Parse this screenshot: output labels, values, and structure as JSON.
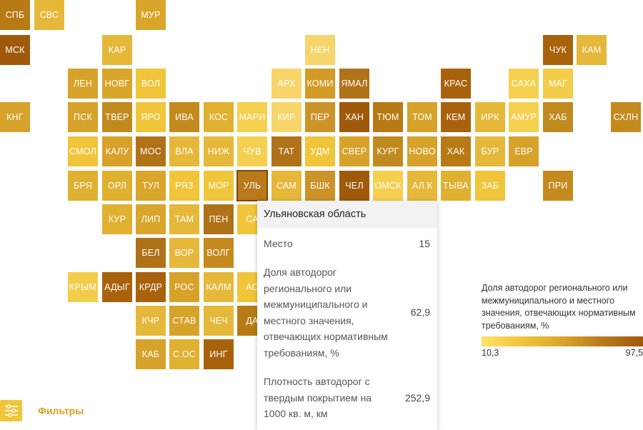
{
  "chart_data": {
    "type": "tile-map",
    "regions": [
      {
        "label": "СПБ",
        "color": "#b87a14"
      },
      {
        "label": "СВС",
        "color": "#e5b83a"
      },
      {
        "label": "МУР",
        "color": "#d9a52a"
      },
      {
        "label": "МСК",
        "color": "#9e5a0a"
      },
      {
        "label": "КАР",
        "color": "#e5b83a"
      },
      {
        "label": "НЕН",
        "color": "#f7d56a"
      },
      {
        "label": "ЧУК",
        "color": "#a8620c"
      },
      {
        "label": "КАМ",
        "color": "#e5b83a"
      },
      {
        "label": "ЛЕН",
        "color": "#d6a22a"
      },
      {
        "label": "НОВГ",
        "color": "#d9a52a"
      },
      {
        "label": "ВОЛ",
        "color": "#f0c53a"
      },
      {
        "label": "АРХ",
        "color": "#f7d56a"
      },
      {
        "label": "КОМИ",
        "color": "#d39a26"
      },
      {
        "label": "ЯМАЛ",
        "color": "#b07218"
      },
      {
        "label": "КРАС",
        "color": "#a8620c"
      },
      {
        "label": "САХА",
        "color": "#f5d04f"
      },
      {
        "label": "МАГ",
        "color": "#f3cc4a"
      },
      {
        "label": "КНГ",
        "color": "#d6a22a"
      },
      {
        "label": "ПСК",
        "color": "#d6a22a"
      },
      {
        "label": "ТВЕР",
        "color": "#c08a1e"
      },
      {
        "label": "ЯРО",
        "color": "#f0c53a"
      },
      {
        "label": "ИВА",
        "color": "#c48a1e"
      },
      {
        "label": "КОС",
        "color": "#e0b030"
      },
      {
        "label": "МАРИ",
        "color": "#f5d04f"
      },
      {
        "label": "КИР",
        "color": "#f7d56a"
      },
      {
        "label": "ПЕР",
        "color": "#cb9328"
      },
      {
        "label": "ХАН",
        "color": "#9e5a0a"
      },
      {
        "label": "ТЮМ",
        "color": "#b87a14"
      },
      {
        "label": "ТОМ",
        "color": "#d6a22a"
      },
      {
        "label": "КЕМ",
        "color": "#a8620c"
      },
      {
        "label": "ИРК",
        "color": "#e6b83a"
      },
      {
        "label": "АМУР",
        "color": "#f5d04f"
      },
      {
        "label": "ХАБ",
        "color": "#c08a1e"
      },
      {
        "label": "СХЛН",
        "color": "#c48a1e"
      },
      {
        "label": "СМОЛ",
        "color": "#f0c53a"
      },
      {
        "label": "КАЛУ",
        "color": "#d6a22a"
      },
      {
        "label": "МОС",
        "color": "#b07218"
      },
      {
        "label": "ВЛА",
        "color": "#e5b83a"
      },
      {
        "label": "НИЖ",
        "color": "#e5b83a"
      },
      {
        "label": "ЧУВ",
        "color": "#f5d04f"
      },
      {
        "label": "ТАТ",
        "color": "#b07218"
      },
      {
        "label": "УДМ",
        "color": "#f0c53a"
      },
      {
        "label": "СВЕР",
        "color": "#d6a22a"
      },
      {
        "label": "КУРГ",
        "color": "#c08a1e"
      },
      {
        "label": "НОВО",
        "color": "#d6a22a"
      },
      {
        "label": "ХАК",
        "color": "#b87a14"
      },
      {
        "label": "БУР",
        "color": "#e5b83a"
      },
      {
        "label": "ЕВР",
        "color": "#d6a22a"
      },
      {
        "label": "БРЯ",
        "color": "#e0b030"
      },
      {
        "label": "ОРЛ",
        "color": "#e0b030"
      },
      {
        "label": "ТУЛ",
        "color": "#d9a52a"
      },
      {
        "label": "РЯЗ",
        "color": "#f0c53a"
      },
      {
        "label": "МОР",
        "color": "#f0c53a"
      },
      {
        "label": "УЛЬ",
        "color": "#b8791a"
      },
      {
        "label": "САМ",
        "color": "#e5b83a"
      },
      {
        "label": "БШК",
        "color": "#cb9328"
      },
      {
        "label": "ЧЕЛ",
        "color": "#9e5a0a"
      },
      {
        "label": "ОМСК",
        "color": "#f5d04f"
      },
      {
        "label": "АЛ.К",
        "color": "#e5b83a"
      },
      {
        "label": "ТЫВА",
        "color": "#e0b030"
      },
      {
        "label": "ЗАБ",
        "color": "#f0c53a"
      },
      {
        "label": "ПРИ",
        "color": "#c48a1e"
      },
      {
        "label": "КУР",
        "color": "#e0b030"
      },
      {
        "label": "ЛИП",
        "color": "#d9a52a"
      },
      {
        "label": "ТАМ",
        "color": "#e5b83a"
      },
      {
        "label": "ПЕН",
        "color": "#b07218"
      },
      {
        "label": "СА",
        "color": "#f0c53a"
      },
      {
        "label": "БЕЛ",
        "color": "#b07218"
      },
      {
        "label": "ВОР",
        "color": "#e5b83a"
      },
      {
        "label": "ВОЛГ",
        "color": "#c48a1e"
      },
      {
        "label": "КРЫМ",
        "color": "#f3cc4a"
      },
      {
        "label": "АДЫГ",
        "color": "#a8620c"
      },
      {
        "label": "КРДР",
        "color": "#a8620c"
      },
      {
        "label": "РОС",
        "color": "#d6a22a"
      },
      {
        "label": "КАЛМ",
        "color": "#e5b83a"
      },
      {
        "label": "АС",
        "color": "#f0c53a"
      },
      {
        "label": "КЧР",
        "color": "#e5b83a"
      },
      {
        "label": "СТАВ",
        "color": "#d6a22a"
      },
      {
        "label": "ЧЕЧ",
        "color": "#e5b83a"
      },
      {
        "label": "ДА",
        "color": "#b87a14"
      },
      {
        "label": "КАБ",
        "color": "#d6a22a"
      },
      {
        "label": "С.ОС",
        "color": "#e0b030"
      },
      {
        "label": "ИНГ",
        "color": "#a8620c"
      }
    ]
  },
  "tooltip": {
    "title": "Ульяновская область",
    "rows": [
      {
        "label": "Место",
        "value": "15"
      },
      {
        "label": "Доля автодорог регионального или межмуниципального и местного значения, отвечающих нормативным требованиям, %",
        "value": "62,9"
      },
      {
        "label": "Плотность автодорог с твердым покрытием на 1000 кв. м, км",
        "value": "252,9"
      }
    ]
  },
  "legend": {
    "title": "Доля автодорог регионального или межмуниципального и местного значения, отвечающих нормативным требованиям, %",
    "min": "10,3",
    "max": "97,5"
  },
  "filters": {
    "label": "Фильтры",
    "icon": "sliders-icon"
  }
}
